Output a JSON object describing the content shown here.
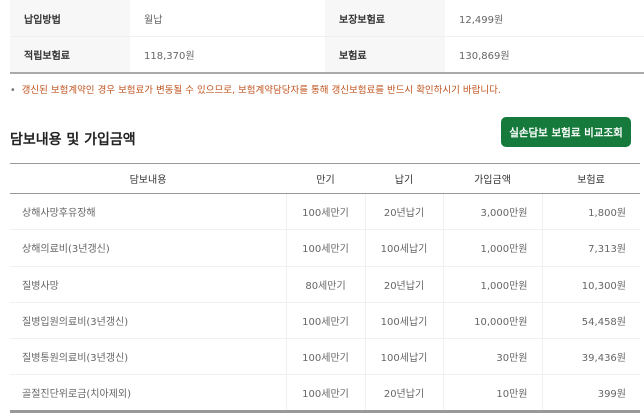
{
  "summary": [
    [
      {
        "label": "납입방법",
        "value": "월납"
      },
      {
        "label": "보장보험료",
        "value": "12,499원"
      }
    ],
    [
      {
        "label": "적립보험료",
        "value": "118,370원"
      },
      {
        "label": "보험료",
        "value": "130,869원"
      }
    ]
  ],
  "notice": "갱신된 보험계약인 경우 보험료가 변동될 수 있으므로, 보험계약담당자를 통해 갱신보험료를 반드시 확인하시기 바랍니다.",
  "section_title": "담보내용 및 가입금액",
  "compare_button": "실손담보 보험료 비교조회",
  "colors": {
    "accent": "#157a3c",
    "notice": "#c0541f"
  },
  "table": {
    "headers": [
      "담보내용",
      "만기",
      "납기",
      "가입금액",
      "보험료"
    ],
    "rows": [
      [
        "상해사망후유장해",
        "100세만기",
        "20년납기",
        "3,000만원",
        "1,800원"
      ],
      [
        "상해의료비(3년갱신)",
        "100세만기",
        "100세납기",
        "1,000만원",
        "7,313원"
      ],
      [
        "질병사망",
        "80세만기",
        "20년납기",
        "1,000만원",
        "10,300원"
      ],
      [
        "질병입원의료비(3년갱신)",
        "100세만기",
        "100세납기",
        "10,000만원",
        "54,458원"
      ],
      [
        "질병통원의료비(3년갱신)",
        "100세만기",
        "100세납기",
        "30만원",
        "39,436원"
      ],
      [
        "골절진단위로금(치아제외)",
        "100세만기",
        "20년납기",
        "10만원",
        "399원"
      ]
    ]
  }
}
